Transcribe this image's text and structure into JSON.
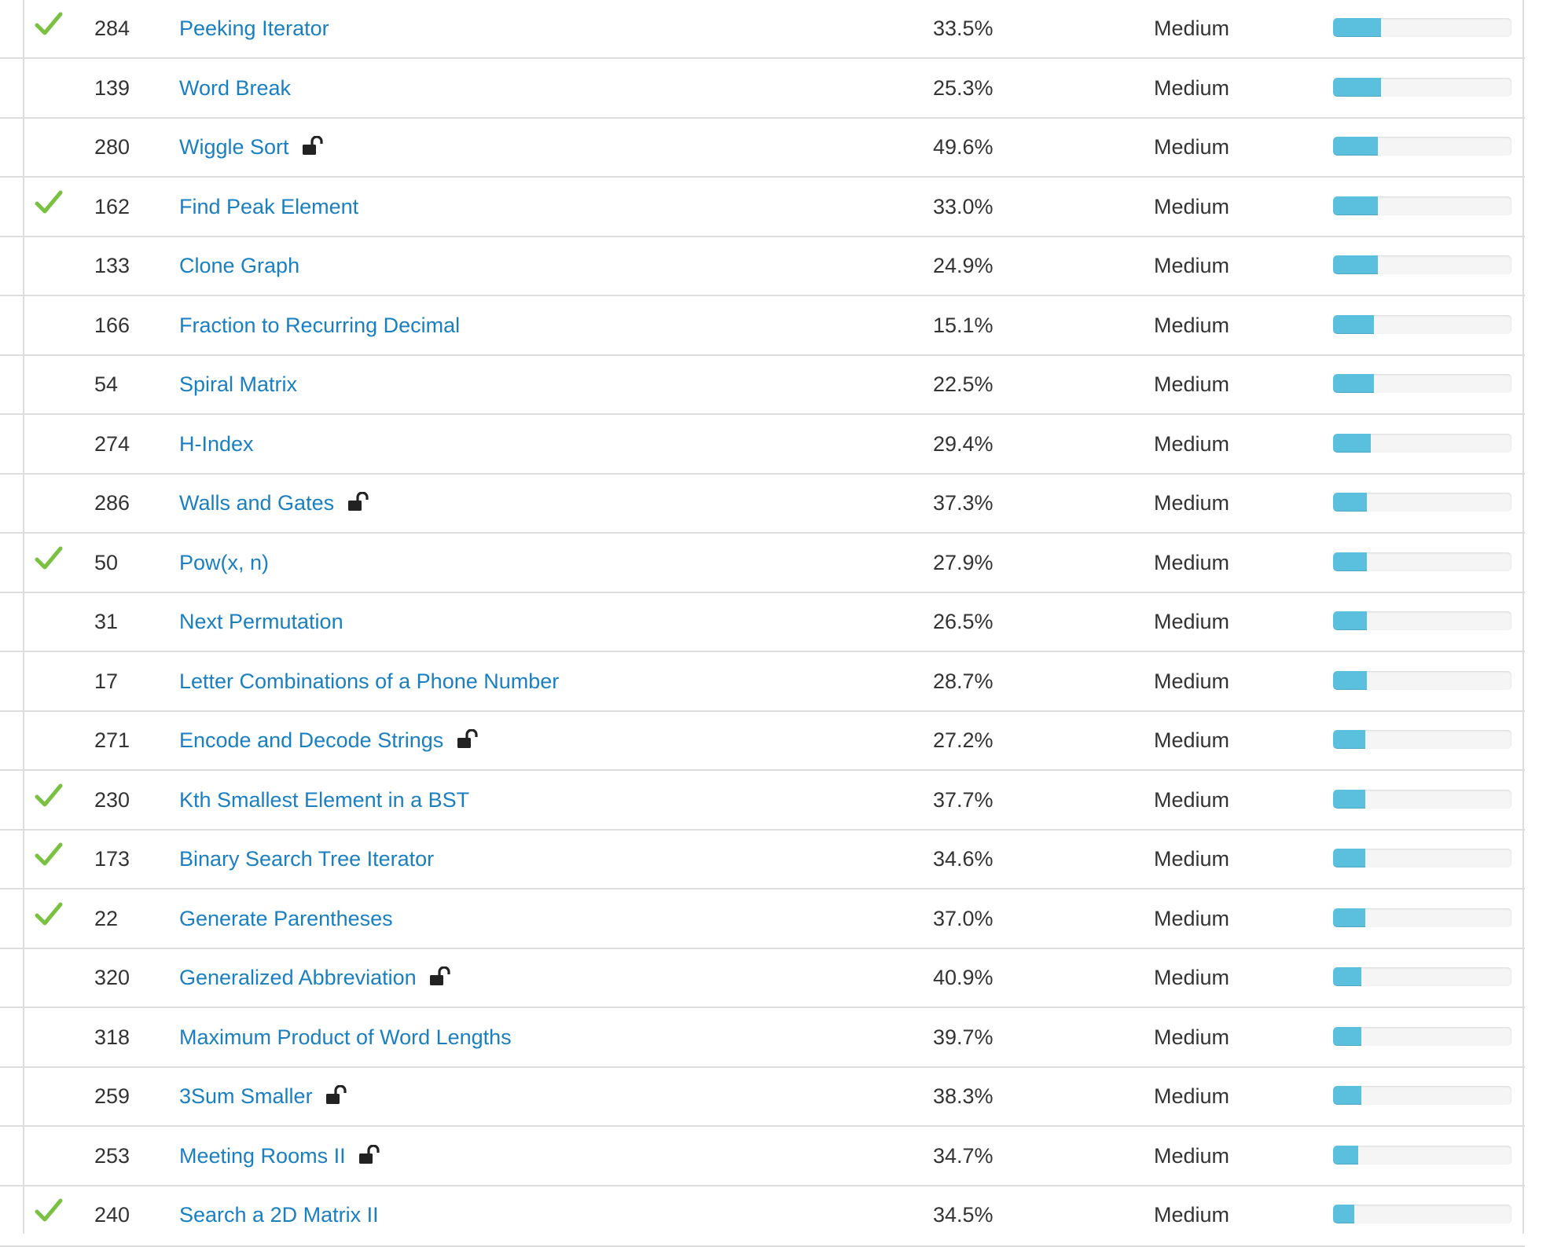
{
  "colors": {
    "link": "#1a7fc1",
    "check": "#7ac142",
    "progress": "#5bc0de",
    "border": "#dddddd"
  },
  "icons": {
    "solved": "checkmark-icon",
    "locked": "unlock-icon"
  },
  "problems": [
    {
      "solved": true,
      "id": "284",
      "title": "Peeking Iterator",
      "locked": false,
      "acceptance": "33.5%",
      "difficulty": "Medium",
      "frequency": 0.27
    },
    {
      "solved": false,
      "id": "139",
      "title": "Word Break",
      "locked": false,
      "acceptance": "25.3%",
      "difficulty": "Medium",
      "frequency": 0.27
    },
    {
      "solved": false,
      "id": "280",
      "title": "Wiggle Sort",
      "locked": true,
      "acceptance": "49.6%",
      "difficulty": "Medium",
      "frequency": 0.25
    },
    {
      "solved": true,
      "id": "162",
      "title": "Find Peak Element",
      "locked": false,
      "acceptance": "33.0%",
      "difficulty": "Medium",
      "frequency": 0.25
    },
    {
      "solved": false,
      "id": "133",
      "title": "Clone Graph",
      "locked": false,
      "acceptance": "24.9%",
      "difficulty": "Medium",
      "frequency": 0.25
    },
    {
      "solved": false,
      "id": "166",
      "title": "Fraction to Recurring Decimal",
      "locked": false,
      "acceptance": "15.1%",
      "difficulty": "Medium",
      "frequency": 0.23
    },
    {
      "solved": false,
      "id": "54",
      "title": "Spiral Matrix",
      "locked": false,
      "acceptance": "22.5%",
      "difficulty": "Medium",
      "frequency": 0.23
    },
    {
      "solved": false,
      "id": "274",
      "title": "H-Index",
      "locked": false,
      "acceptance": "29.4%",
      "difficulty": "Medium",
      "frequency": 0.21
    },
    {
      "solved": false,
      "id": "286",
      "title": "Walls and Gates",
      "locked": true,
      "acceptance": "37.3%",
      "difficulty": "Medium",
      "frequency": 0.19
    },
    {
      "solved": true,
      "id": "50",
      "title": "Pow(x, n)",
      "locked": false,
      "acceptance": "27.9%",
      "difficulty": "Medium",
      "frequency": 0.19
    },
    {
      "solved": false,
      "id": "31",
      "title": "Next Permutation",
      "locked": false,
      "acceptance": "26.5%",
      "difficulty": "Medium",
      "frequency": 0.19
    },
    {
      "solved": false,
      "id": "17",
      "title": "Letter Combinations of a Phone Number",
      "locked": false,
      "acceptance": "28.7%",
      "difficulty": "Medium",
      "frequency": 0.19
    },
    {
      "solved": false,
      "id": "271",
      "title": "Encode and Decode Strings",
      "locked": true,
      "acceptance": "27.2%",
      "difficulty": "Medium",
      "frequency": 0.18
    },
    {
      "solved": true,
      "id": "230",
      "title": "Kth Smallest Element in a BST",
      "locked": false,
      "acceptance": "37.7%",
      "difficulty": "Medium",
      "frequency": 0.18
    },
    {
      "solved": true,
      "id": "173",
      "title": "Binary Search Tree Iterator",
      "locked": false,
      "acceptance": "34.6%",
      "difficulty": "Medium",
      "frequency": 0.18
    },
    {
      "solved": true,
      "id": "22",
      "title": "Generate Parentheses",
      "locked": false,
      "acceptance": "37.0%",
      "difficulty": "Medium",
      "frequency": 0.18
    },
    {
      "solved": false,
      "id": "320",
      "title": "Generalized Abbreviation",
      "locked": true,
      "acceptance": "40.9%",
      "difficulty": "Medium",
      "frequency": 0.16
    },
    {
      "solved": false,
      "id": "318",
      "title": "Maximum Product of Word Lengths",
      "locked": false,
      "acceptance": "39.7%",
      "difficulty": "Medium",
      "frequency": 0.16
    },
    {
      "solved": false,
      "id": "259",
      "title": "3Sum Smaller",
      "locked": true,
      "acceptance": "38.3%",
      "difficulty": "Medium",
      "frequency": 0.16
    },
    {
      "solved": false,
      "id": "253",
      "title": "Meeting Rooms II",
      "locked": true,
      "acceptance": "34.7%",
      "difficulty": "Medium",
      "frequency": 0.14
    },
    {
      "solved": true,
      "id": "240",
      "title": "Search a 2D Matrix II",
      "locked": false,
      "acceptance": "34.5%",
      "difficulty": "Medium",
      "frequency": 0.12
    }
  ]
}
